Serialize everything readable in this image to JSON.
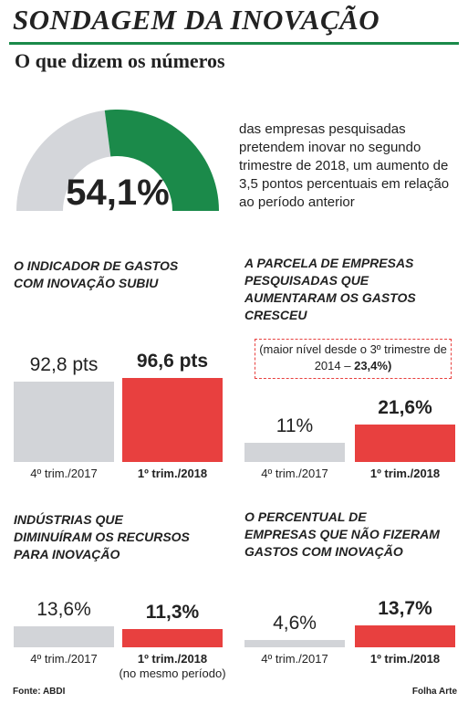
{
  "header": {
    "title": "SONDAGEM DA INOVAÇÃO",
    "subtitle": "O que dizem os números"
  },
  "chart_data": [
    {
      "type": "gauge",
      "value": 54.1,
      "value_label": "54,1%",
      "ylim": [
        0,
        100
      ],
      "color": "#1b8a4a",
      "track_color": "#d4d6da",
      "description": "das empresas pesquisadas pretendem inovar no segundo trimestre de 2018, um aumento de 3,5 pontos percentuais em relação ao período anterior"
    },
    {
      "type": "bar",
      "title": [
        "O INDICADOR DE GASTOS",
        "COM INOVAÇÃO SUBIU"
      ],
      "categories": [
        "4º trim./2017",
        "1º trim./2018"
      ],
      "values": [
        92.8,
        96.6
      ],
      "value_labels": [
        "92,8 pts",
        "96,6 pts"
      ],
      "colors": [
        "#d2d4d8",
        "#e8403f"
      ],
      "ylim": [
        0,
        100
      ]
    },
    {
      "type": "bar",
      "title": [
        "A PARCELA DE EMPRESAS",
        "PESQUISADAS QUE",
        "AUMENTARAM OS GASTOS",
        "CRESCEU"
      ],
      "categories": [
        "4º trim./2017",
        "1º trim./2018"
      ],
      "values": [
        11,
        21.6
      ],
      "value_labels": [
        "11%",
        "21,6%"
      ],
      "colors": [
        "#d2d4d8",
        "#e8403f"
      ],
      "ylim": [
        0,
        50
      ],
      "annotation": {
        "text": "(maior nível desde o 3º trimestre de 2014 –",
        "highlight": "23,4%)"
      }
    },
    {
      "type": "bar",
      "title": [
        "INDÚSTRIAS QUE",
        "DIMINUÍRAM OS RECURSOS",
        "PARA INOVAÇÃO"
      ],
      "categories": [
        "4º trim./2017",
        "1º trim./2018"
      ],
      "values": [
        13.6,
        11.3
      ],
      "value_labels": [
        "13,6%",
        "11,3%"
      ],
      "colors": [
        "#d2d4d8",
        "#e8403f"
      ],
      "ylim": [
        0,
        55
      ],
      "note": "(no mesmo período)"
    },
    {
      "type": "bar",
      "title": [
        "O PERCENTUAL DE",
        "EMPRESAS QUE NÃO FIZERAM",
        "GASTOS COM INOVAÇÃO"
      ],
      "categories": [
        "4º trim./2017",
        "1º trim./2018"
      ],
      "values": [
        4.6,
        13.7
      ],
      "value_labels": [
        "4,6%",
        "13,7%"
      ],
      "colors": [
        "#d2d4d8",
        "#e8403f"
      ],
      "ylim": [
        0,
        55
      ]
    }
  ],
  "footer": {
    "source": "Fonte: ABDI",
    "credit": "Folha Arte"
  }
}
